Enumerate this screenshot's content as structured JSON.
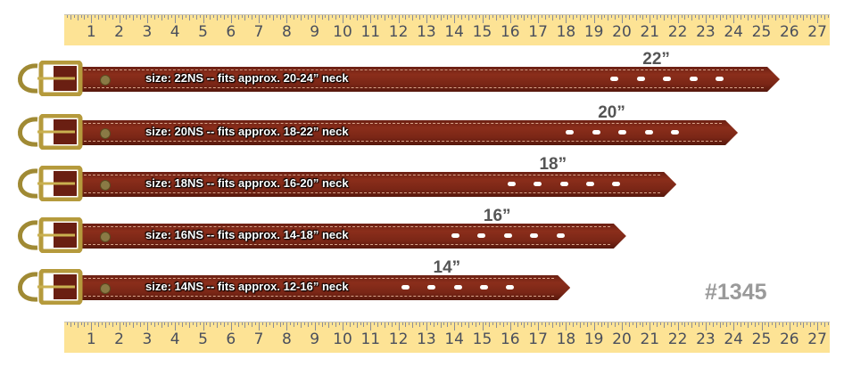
{
  "ruler": {
    "numbers": [
      1,
      2,
      3,
      4,
      5,
      6,
      7,
      8,
      9,
      10,
      11,
      12,
      13,
      14,
      15,
      16,
      17,
      18,
      19,
      20,
      21,
      22,
      23,
      24,
      25,
      26,
      27
    ],
    "color": "#fde395"
  },
  "collars": [
    {
      "length": "22”",
      "label": "size: 22NS -- fits approx. 20-24” neck",
      "tip_inch": 25.4,
      "first_hole_inch": 19.6
    },
    {
      "length": "20”",
      "label": "size: 20NS -- fits approx. 18-22” neck",
      "tip_inch": 23.9,
      "first_hole_inch": 18.0
    },
    {
      "length": "18”",
      "label": "size: 18NS -- fits approx. 16-20” neck",
      "tip_inch": 21.7,
      "first_hole_inch": 15.9
    },
    {
      "length": "16”",
      "label": "size: 16NS -- fits approx. 14-18” neck",
      "tip_inch": 19.9,
      "first_hole_inch": 13.9
    },
    {
      "length": "14”",
      "label": "size: 14NS -- fits approx. 12-16” neck",
      "tip_inch": 17.9,
      "first_hole_inch": 12.1
    }
  ],
  "sku": "#1345",
  "colors": {
    "leather": "#7a2616",
    "brass": "#b59a3c",
    "sku_text": "#9a9a9a"
  }
}
